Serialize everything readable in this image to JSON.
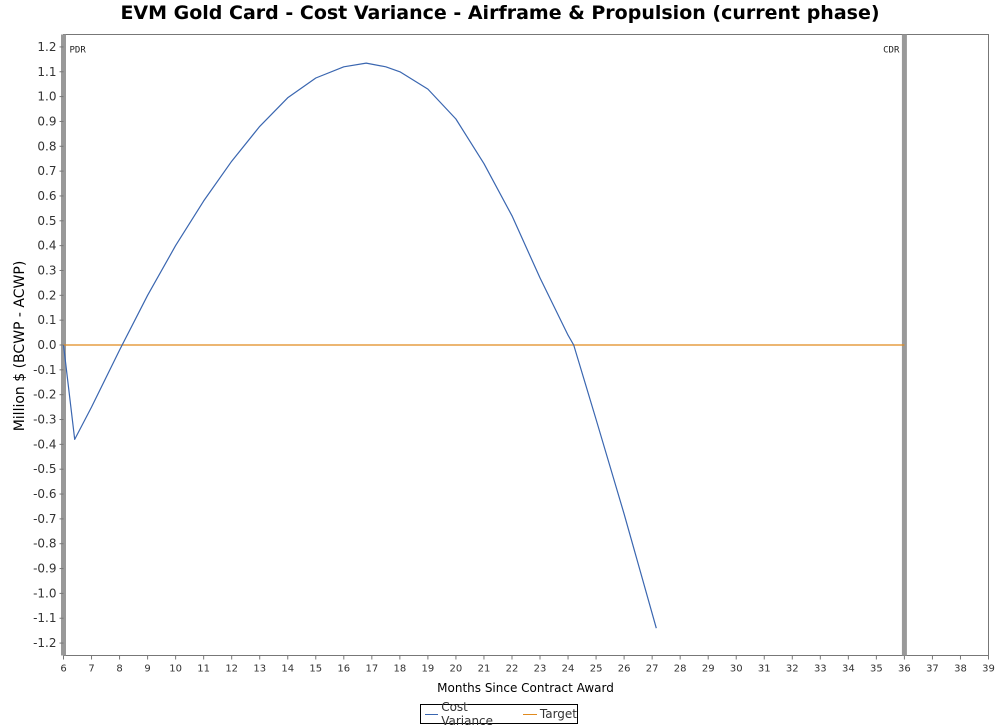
{
  "chart_data": {
    "type": "line",
    "title": "EVM Gold Card - Cost Variance - Airframe & Propulsion (current phase)",
    "xlabel": "Months Since Contract Award",
    "ylabel": "Million $ (BCWP - ACWP)",
    "xlim": [
      6,
      39
    ],
    "ylim": [
      -1.25,
      1.25
    ],
    "x_ticks": [
      6,
      7,
      8,
      9,
      10,
      11,
      12,
      13,
      14,
      15,
      16,
      17,
      18,
      19,
      20,
      21,
      22,
      23,
      24,
      25,
      26,
      27,
      28,
      29,
      30,
      31,
      32,
      33,
      34,
      35,
      36,
      37,
      38,
      39
    ],
    "y_ticks": [
      1.2,
      1.1,
      1.0,
      0.9,
      0.8,
      0.7,
      0.6,
      0.5,
      0.4,
      0.3,
      0.2,
      0.1,
      0.0,
      -0.1,
      -0.2,
      -0.3,
      -0.4,
      -0.5,
      -0.6,
      -0.7,
      -0.8,
      -0.9,
      -1.0,
      -1.1,
      -1.2
    ],
    "grid": false,
    "legend_position": "bottom-center",
    "milestones": [
      {
        "label": "PDR",
        "x": 6
      },
      {
        "label": "CDR",
        "x": 36
      }
    ],
    "series": [
      {
        "name": "Cost Variance",
        "color": "#3a66b0",
        "x": [
          6.0,
          6.4,
          7.0,
          8.0,
          9.0,
          10.0,
          11.0,
          12.0,
          13.0,
          14.0,
          15.0,
          16.0,
          16.8,
          17.5,
          18.0,
          19.0,
          20.0,
          21.0,
          22.0,
          23.0,
          24.0,
          24.2,
          25.0,
          26.0,
          27.15
        ],
        "values": [
          0.0,
          -0.38,
          -0.25,
          -0.02,
          0.2,
          0.4,
          0.58,
          0.74,
          0.88,
          0.995,
          1.075,
          1.12,
          1.135,
          1.12,
          1.1,
          1.03,
          0.91,
          0.73,
          0.52,
          0.27,
          0.04,
          0.0,
          -0.3,
          -0.68,
          -1.14
        ]
      },
      {
        "name": "Target",
        "color": "#e08a1e",
        "x": [
          6.0,
          36.0
        ],
        "values": [
          0.0,
          0.0
        ]
      }
    ]
  }
}
